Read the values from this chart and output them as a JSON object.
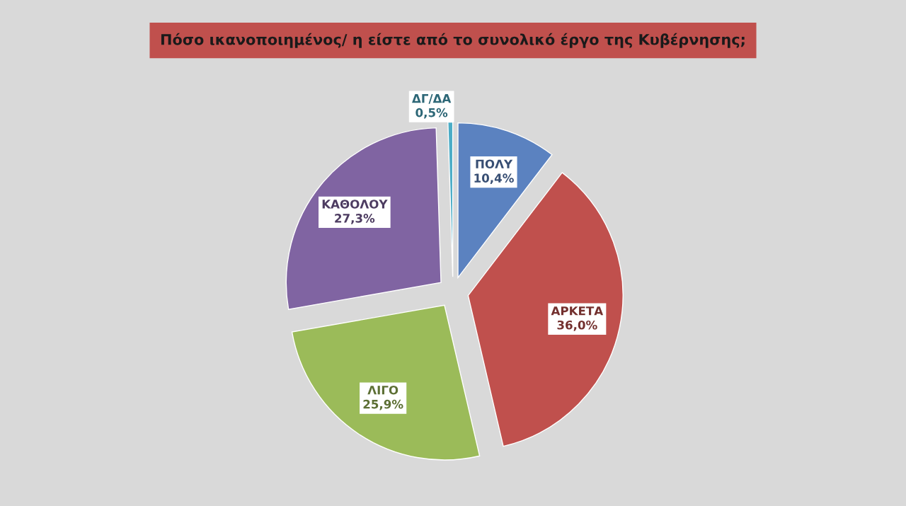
{
  "chart_data": {
    "type": "pie",
    "title": "Πόσο ικανοποιημένος/ η είστε από το συνολικό έργο της Κυβέρνησης;",
    "categories": [
      "ΠΟΛΥ",
      "ΑΡΚΕΤΑ",
      "ΛΙΓΟ",
      "ΚΑΘΟΛΟΥ",
      "ΔΓ/ΔΑ"
    ],
    "values": [
      10.4,
      36.0,
      25.9,
      27.3,
      0.5
    ],
    "value_labels": [
      "10,4%",
      "36,0%",
      "25,9%",
      "27,3%",
      "0,5%"
    ],
    "colors": [
      "#5b82c0",
      "#c0504d",
      "#9bbb59",
      "#8064a2",
      "#4bacc6"
    ],
    "legend": false
  }
}
